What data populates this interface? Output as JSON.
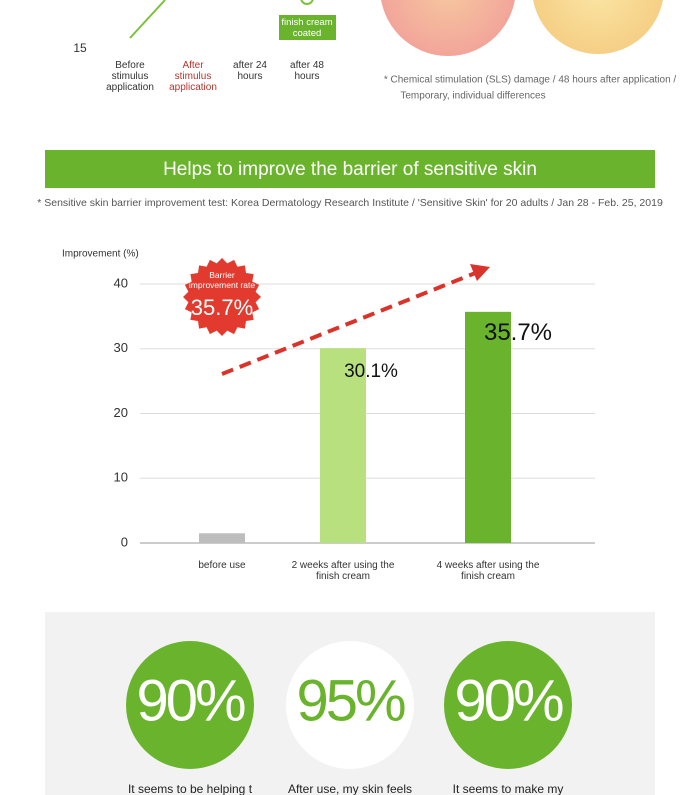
{
  "top_chart": {
    "ytick": "15",
    "categories": [
      "Before stimulus application",
      "After stimulus application",
      "after 24 hours",
      "after 48 hours"
    ],
    "callout": "finish cream coated"
  },
  "top_note": [
    "* Chemical stimulation (SLS) damage / 48 hours after application /",
    "Temporary, individual differences"
  ],
  "banner": {
    "title": "Helps to improve the barrier of sensitive skin"
  },
  "study_note": "* Sensitive skin barrier improvement test: Korea Dermatology Research Institute / 'Sensitive Skin' for 20 adults / Jan 28 - Feb. 25, 2019",
  "chart_data": {
    "type": "bar",
    "y_label": "Improvement (%)",
    "categories": [
      "before use",
      "2 weeks after using the finish cream",
      "4 weeks after using the finish cream"
    ],
    "values": [
      1.5,
      30.1,
      35.7
    ],
    "value_labels": [
      null,
      "30.1%",
      "35.7%"
    ],
    "colors": [
      "#bdbdbd",
      "#b8e07f",
      "#6ab42d"
    ],
    "ylim": [
      0,
      40
    ],
    "yticks": [
      0,
      10,
      20,
      30,
      40
    ],
    "grid": true
  },
  "badge": {
    "label": "Barrier improvement rate",
    "value": "35.7%"
  },
  "stats": [
    {
      "value": "90%",
      "caption": "It seems to be helping t"
    },
    {
      "value": "95%",
      "caption": "After use, my skin feels"
    },
    {
      "value": "90%",
      "caption": "It seems to make my"
    }
  ]
}
